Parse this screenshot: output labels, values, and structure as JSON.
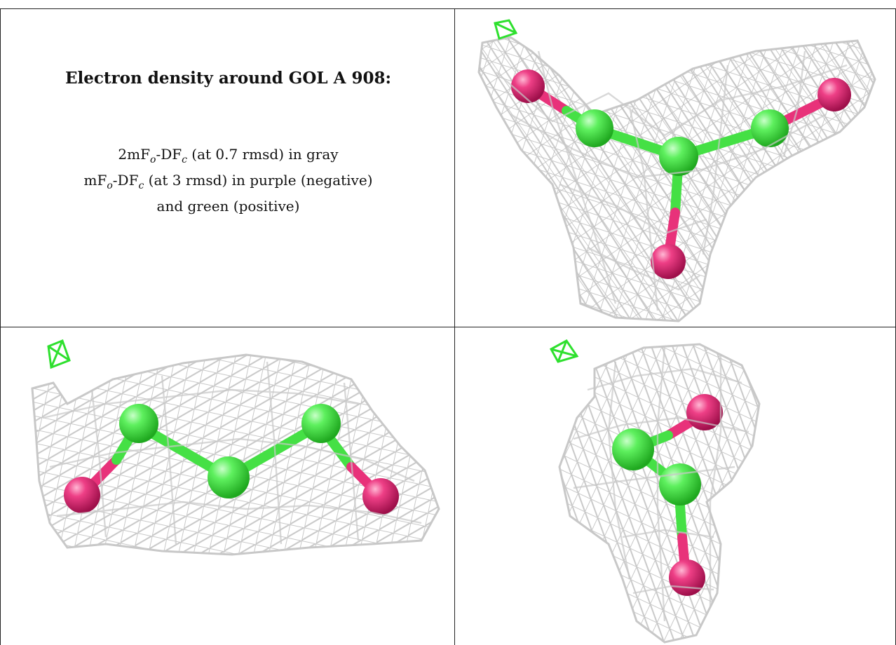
{
  "panel_text": {
    "title": "Electron density around GOL A 908:",
    "line1_prefix": "2mF",
    "line1_sub1": "o",
    "line1_mid": "-DF",
    "line1_sub2": "c",
    "line1_suffix": " (at 0.7 rmsd) in gray",
    "line2_prefix": "mF",
    "line2_sub1": "o",
    "line2_mid": "-DF",
    "line2_sub2": "c",
    "line2_suffix": " (at 3 rmsd) in purple (negative)",
    "line3": "and green (positive)"
  },
  "colors": {
    "mesh": "#c8c8c8",
    "carbon": "#45e045",
    "oxygen": "#e8327a",
    "positive_density": "#2ee02e"
  },
  "views": [
    {
      "name": "top-right view",
      "icon": "molecule-view-front"
    },
    {
      "name": "bottom-left view",
      "icon": "molecule-view-side"
    },
    {
      "name": "bottom-right view",
      "icon": "molecule-view-rotated"
    }
  ]
}
